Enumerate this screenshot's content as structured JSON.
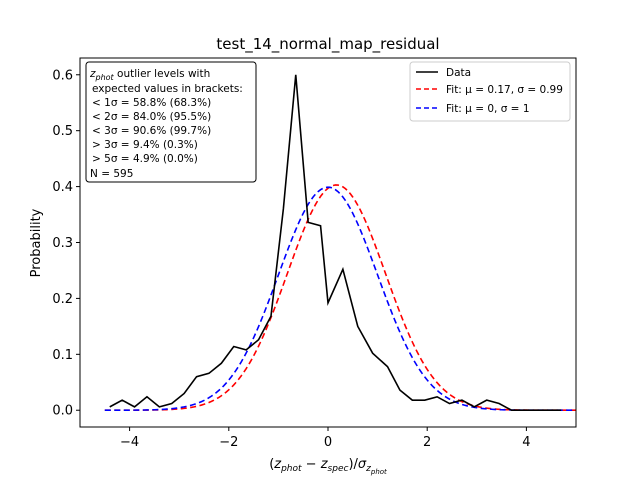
{
  "chart_data": {
    "type": "line",
    "title": "test_14_normal_map_residual",
    "xlabel": "(z_phot − z_spec)/σ_z_phot",
    "ylabel": "Probability",
    "xlim": [
      -5,
      5
    ],
    "ylim": [
      -0.03,
      0.63
    ],
    "xticks": [
      -4,
      -2,
      0,
      2,
      4
    ],
    "yticks": [
      0.0,
      0.1,
      0.2,
      0.3,
      0.4,
      0.5,
      0.6
    ],
    "xtick_labels": [
      "−4",
      "−2",
      "0",
      "2",
      "4"
    ],
    "ytick_labels": [
      "0.0",
      "0.1",
      "0.2",
      "0.3",
      "0.4",
      "0.5",
      "0.6"
    ],
    "grid": false,
    "legend_position": "top-right",
    "series": [
      {
        "name": "Data",
        "color": "#000000",
        "style": "solid",
        "x": [
          -4.4,
          -4.15,
          -3.9,
          -3.65,
          -3.4,
          -3.15,
          -2.9,
          -2.65,
          -2.4,
          -2.15,
          -1.9,
          -1.65,
          -1.4,
          -1.15,
          -0.9,
          -0.65,
          -0.4,
          -0.15,
          0.0,
          0.3,
          0.6,
          0.9,
          1.2,
          1.45,
          1.7,
          1.95,
          2.2,
          2.45,
          2.7,
          2.95,
          3.2,
          3.45,
          3.7,
          3.95,
          4.2,
          4.45,
          4.7
        ],
        "y": [
          0.006,
          0.018,
          0.006,
          0.024,
          0.006,
          0.012,
          0.03,
          0.06,
          0.066,
          0.084,
          0.114,
          0.108,
          0.126,
          0.168,
          0.36,
          0.6,
          0.336,
          0.33,
          0.192,
          0.252,
          0.15,
          0.102,
          0.078,
          0.036,
          0.018,
          0.018,
          0.024,
          0.012,
          0.018,
          0.006,
          0.018,
          0.012,
          0.0,
          0.0,
          0.0,
          0.0,
          0.0
        ]
      },
      {
        "name": "Fit: μ = 0.17, σ = 0.99",
        "color": "#ff0000",
        "style": "dashed",
        "mu": 0.17,
        "sigma": 0.99
      },
      {
        "name": "Fit: μ = 0, σ = 1",
        "color": "#0000ff",
        "style": "dashed",
        "mu": 0,
        "sigma": 1
      }
    ],
    "annotation": {
      "line1_prefix": "z",
      "line1_sub": "phot",
      "line1_rest": " outlier levels with",
      "lines": [
        "expected values in brackets:",
        "< 1σ = 58.8% (68.3%)",
        "< 2σ = 84.0% (95.5%)",
        "< 3σ = 90.6% (99.7%)",
        "> 3σ = 9.4% (0.3%)",
        "> 5σ = 4.9% (0.0%)",
        "N = 595"
      ]
    }
  }
}
